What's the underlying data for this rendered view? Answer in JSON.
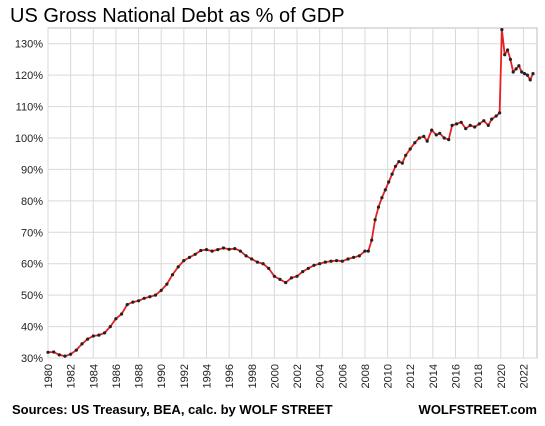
{
  "chart_data": {
    "type": "line",
    "title": "US Gross National Debt as % of GDP",
    "source": "Sources: US Treasury, BEA, calc. by WOLF STREET",
    "brand": "WOLFSTREET.com",
    "ylim": [
      30,
      135
    ],
    "yticks": [
      "30%",
      "40%",
      "50%",
      "60%",
      "70%",
      "80%",
      "90%",
      "100%",
      "110%",
      "120%",
      "130%"
    ],
    "ytick_values": [
      30,
      40,
      50,
      60,
      70,
      80,
      90,
      100,
      110,
      120,
      130
    ],
    "xlim": [
      1980,
      2023.2
    ],
    "xticks": [
      "1980",
      "1982",
      "1984",
      "1986",
      "1988",
      "1990",
      "1992",
      "1994",
      "1996",
      "1998",
      "2000",
      "2002",
      "2004",
      "2006",
      "2008",
      "2010",
      "2012",
      "2014",
      "2016",
      "2018",
      "2020",
      "2022"
    ],
    "xtick_values": [
      1980,
      1982,
      1984,
      1986,
      1988,
      1990,
      1992,
      1994,
      1996,
      1998,
      2000,
      2002,
      2004,
      2006,
      2008,
      2010,
      2012,
      2014,
      2016,
      2018,
      2020,
      2022
    ],
    "grid": true,
    "line_color": "#e8201e",
    "marker_color": "#222222",
    "series": [
      {
        "points": [
          [
            1980.0,
            31.8
          ],
          [
            1980.5,
            31.9
          ],
          [
            1981.0,
            31.0
          ],
          [
            1981.5,
            30.6
          ],
          [
            1982.0,
            31.2
          ],
          [
            1982.5,
            32.5
          ],
          [
            1983.0,
            34.5
          ],
          [
            1983.5,
            36.0
          ],
          [
            1984.0,
            37.0
          ],
          [
            1984.5,
            37.3
          ],
          [
            1985.0,
            38.0
          ],
          [
            1985.5,
            40.0
          ],
          [
            1986.0,
            42.5
          ],
          [
            1986.5,
            44.0
          ],
          [
            1987.0,
            47.0
          ],
          [
            1987.5,
            47.8
          ],
          [
            1988.0,
            48.2
          ],
          [
            1988.5,
            49.0
          ],
          [
            1989.0,
            49.5
          ],
          [
            1989.5,
            50.0
          ],
          [
            1990.0,
            51.5
          ],
          [
            1990.5,
            53.5
          ],
          [
            1991.0,
            56.5
          ],
          [
            1991.5,
            59.0
          ],
          [
            1992.0,
            61.0
          ],
          [
            1992.5,
            62.0
          ],
          [
            1993.0,
            63.0
          ],
          [
            1993.5,
            64.2
          ],
          [
            1994.0,
            64.5
          ],
          [
            1994.5,
            64.0
          ],
          [
            1995.0,
            64.5
          ],
          [
            1995.5,
            65.0
          ],
          [
            1996.0,
            64.6
          ],
          [
            1996.5,
            64.8
          ],
          [
            1997.0,
            64.0
          ],
          [
            1997.5,
            62.5
          ],
          [
            1998.0,
            61.5
          ],
          [
            1998.5,
            60.5
          ],
          [
            1999.0,
            60.0
          ],
          [
            1999.5,
            58.5
          ],
          [
            2000.0,
            56.0
          ],
          [
            2000.5,
            55.0
          ],
          [
            2001.0,
            54.0
          ],
          [
            2001.5,
            55.5
          ],
          [
            2002.0,
            56.0
          ],
          [
            2002.5,
            57.5
          ],
          [
            2003.0,
            58.5
          ],
          [
            2003.5,
            59.5
          ],
          [
            2004.0,
            60.0
          ],
          [
            2004.5,
            60.5
          ],
          [
            2005.0,
            60.8
          ],
          [
            2005.5,
            61.0
          ],
          [
            2006.0,
            60.8
          ],
          [
            2006.5,
            61.5
          ],
          [
            2007.0,
            62.0
          ],
          [
            2007.5,
            62.5
          ],
          [
            2008.0,
            64.0
          ],
          [
            2008.3,
            64.0
          ],
          [
            2008.6,
            67.5
          ],
          [
            2008.9,
            74.0
          ],
          [
            2009.2,
            78.0
          ],
          [
            2009.5,
            81.0
          ],
          [
            2009.8,
            83.5
          ],
          [
            2010.1,
            86.0
          ],
          [
            2010.4,
            88.5
          ],
          [
            2010.7,
            91.0
          ],
          [
            2011.0,
            92.5
          ],
          [
            2011.3,
            92.0
          ],
          [
            2011.6,
            94.5
          ],
          [
            2012.0,
            96.5
          ],
          [
            2012.4,
            98.5
          ],
          [
            2012.8,
            100.0
          ],
          [
            2013.2,
            100.5
          ],
          [
            2013.5,
            99.0
          ],
          [
            2013.9,
            102.5
          ],
          [
            2014.3,
            101.0
          ],
          [
            2014.6,
            101.5
          ],
          [
            2015.0,
            100.0
          ],
          [
            2015.4,
            99.5
          ],
          [
            2015.7,
            104.0
          ],
          [
            2016.1,
            104.5
          ],
          [
            2016.5,
            105.0
          ],
          [
            2016.9,
            103.0
          ],
          [
            2017.3,
            104.0
          ],
          [
            2017.7,
            103.5
          ],
          [
            2018.1,
            104.5
          ],
          [
            2018.5,
            105.5
          ],
          [
            2018.9,
            104.0
          ],
          [
            2019.2,
            106.0
          ],
          [
            2019.6,
            107.0
          ],
          [
            2019.9,
            108.0
          ],
          [
            2020.1,
            134.5
          ],
          [
            2020.35,
            126.5
          ],
          [
            2020.6,
            128.0
          ],
          [
            2020.85,
            125.0
          ],
          [
            2021.1,
            121.0
          ],
          [
            2021.35,
            122.0
          ],
          [
            2021.6,
            123.0
          ],
          [
            2021.85,
            121.0
          ],
          [
            2022.1,
            120.5
          ],
          [
            2022.35,
            120.0
          ],
          [
            2022.6,
            118.5
          ],
          [
            2022.85,
            120.5
          ]
        ]
      }
    ]
  }
}
